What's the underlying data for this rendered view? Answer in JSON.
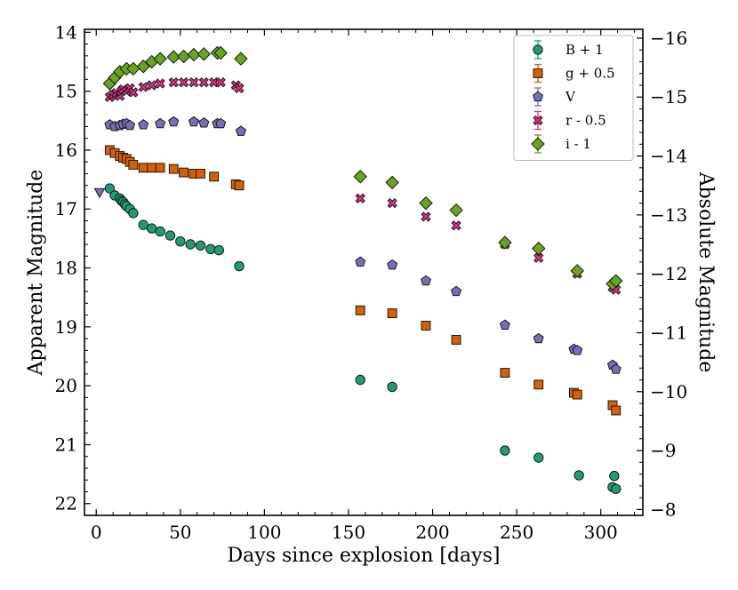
{
  "chart_data": {
    "type": "scatter",
    "title": "",
    "xlabel": "Days since explosion [days]",
    "ylabel": "Apparent Magnitude",
    "ylabel_right": "Absolute Magnitude",
    "xlim": [
      -7,
      325
    ],
    "ylim": [
      22.2,
      13.95
    ],
    "y_inverted": true,
    "absolute_offset": 30.1,
    "x_ticks": [
      0,
      50,
      100,
      150,
      200,
      250,
      300
    ],
    "y_ticks": [
      14,
      15,
      16,
      17,
      18,
      19,
      20,
      21,
      22
    ],
    "y_right_ticks": [
      -16,
      -15,
      -14,
      -13,
      -12,
      -11,
      -10,
      -9,
      -8
    ],
    "y_right_tick_labels": [
      "−16",
      "−15",
      "−14",
      "−13",
      "−12",
      "−11",
      "−10",
      "−9",
      "−8"
    ],
    "legend_position": "top-right",
    "series": [
      {
        "name": "B + 1",
        "color": "#1b9e77",
        "marker": "circle",
        "x": [
          8,
          11,
          14,
          15,
          16,
          17,
          18,
          20,
          22,
          28,
          33,
          38,
          44,
          50,
          56,
          62,
          68,
          73,
          85,
          157,
          176,
          243,
          263,
          287,
          307,
          308,
          309
        ],
        "y": [
          16.65,
          16.77,
          16.82,
          16.86,
          16.88,
          16.92,
          16.95,
          17.0,
          17.07,
          17.27,
          17.33,
          17.38,
          17.45,
          17.55,
          17.6,
          17.62,
          17.68,
          17.7,
          17.97,
          19.9,
          20.02,
          21.1,
          21.22,
          21.52,
          21.72,
          21.53,
          21.75
        ]
      },
      {
        "name": "g + 0.5",
        "color": "#d95f02",
        "marker": "square",
        "x": [
          8,
          11,
          14,
          16,
          18,
          20,
          22,
          28,
          33,
          38,
          46,
          52,
          58,
          62,
          70,
          83,
          85,
          157,
          176,
          196,
          214,
          243,
          263,
          284,
          286,
          307,
          309
        ],
        "y": [
          16.0,
          16.05,
          16.1,
          16.13,
          16.15,
          16.2,
          16.25,
          16.3,
          16.3,
          16.3,
          16.32,
          16.38,
          16.4,
          16.4,
          16.45,
          16.58,
          16.6,
          18.72,
          18.77,
          18.98,
          19.22,
          19.78,
          19.98,
          20.12,
          20.15,
          20.33,
          20.42
        ]
      },
      {
        "name": "V",
        "color": "#7570b3",
        "marker": "pentagon",
        "x": [
          8,
          11,
          14,
          16,
          18,
          20,
          28,
          38,
          46,
          58,
          64,
          72,
          74,
          86,
          157,
          176,
          196,
          214,
          243,
          263,
          284,
          286,
          307,
          309
        ],
        "y": [
          15.57,
          15.6,
          15.58,
          15.56,
          15.55,
          15.58,
          15.57,
          15.55,
          15.52,
          15.52,
          15.54,
          15.55,
          15.55,
          15.68,
          17.9,
          17.95,
          18.22,
          18.4,
          18.97,
          19.2,
          19.38,
          19.4,
          19.65,
          19.72
        ]
      },
      {
        "name": "r - 0.5",
        "color": "#e7298a",
        "marker": "x",
        "x": [
          8,
          10,
          12,
          14,
          15,
          16,
          18,
          20,
          22,
          28,
          33,
          38,
          46,
          52,
          58,
          64,
          70,
          74,
          83,
          85,
          157,
          176,
          196,
          214,
          243,
          263,
          286,
          307,
          309
        ],
        "y": [
          15.1,
          15.06,
          15.03,
          15.08,
          15.0,
          14.97,
          15.0,
          14.95,
          15.02,
          14.93,
          14.9,
          14.87,
          14.85,
          14.85,
          14.85,
          14.85,
          14.85,
          14.85,
          14.9,
          14.95,
          16.82,
          16.9,
          17.13,
          17.28,
          17.6,
          17.83,
          18.1,
          18.33,
          18.37
        ]
      },
      {
        "name": "i - 1",
        "color": "#66a61e",
        "marker": "diamond",
        "x": [
          8,
          11,
          14,
          18,
          22,
          28,
          33,
          38,
          46,
          52,
          58,
          64,
          72,
          74,
          86,
          157,
          176,
          196,
          214,
          243,
          263,
          286,
          307,
          309
        ],
        "y": [
          14.87,
          14.77,
          14.67,
          14.62,
          14.62,
          14.58,
          14.5,
          14.45,
          14.42,
          14.41,
          14.38,
          14.37,
          14.35,
          14.35,
          14.45,
          16.45,
          16.55,
          16.9,
          17.02,
          17.57,
          17.67,
          18.05,
          18.27,
          18.22
        ]
      }
    ],
    "upper_limits": [
      {
        "x": 2,
        "y": 16.72,
        "color": "#7570b3",
        "marker": "triangle-down"
      }
    ]
  }
}
